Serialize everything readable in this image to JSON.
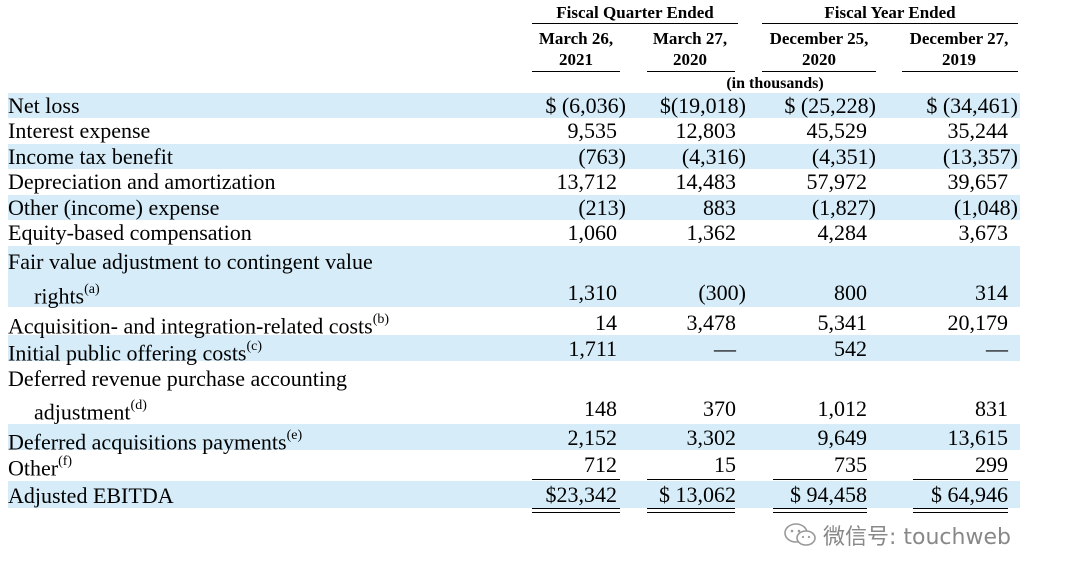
{
  "header": {
    "group_quarter": "Fiscal Quarter Ended",
    "group_year": "Fiscal Year Ended",
    "cols": [
      {
        "l1": "March 26,",
        "l2": "2021"
      },
      {
        "l1": "March 27,",
        "l2": "2020"
      },
      {
        "l1": "December 25,",
        "l2": "2020"
      },
      {
        "l1": "December 27,",
        "l2": "2019"
      }
    ],
    "unit": "(in thousands)"
  },
  "rows": [
    {
      "label": "Net loss",
      "sup": "",
      "v": [
        "$ (6,036)",
        "$(19,018)",
        "$ (25,228)",
        "$ (34,461)"
      ]
    },
    {
      "label": "Interest expense",
      "sup": "",
      "v": [
        "9,535",
        "12,803",
        "45,529",
        "35,244"
      ]
    },
    {
      "label": "Income tax benefit",
      "sup": "",
      "v": [
        "(763)",
        "(4,316)",
        "(4,351)",
        "(13,357)"
      ]
    },
    {
      "label": "Depreciation and amortization",
      "sup": "",
      "v": [
        "13,712",
        "14,483",
        "57,972",
        "39,657"
      ]
    },
    {
      "label": "Other (income) expense",
      "sup": "",
      "v": [
        "(213)",
        "883",
        "(1,827)",
        "(1,048)"
      ]
    },
    {
      "label": "Equity-based compensation",
      "sup": "",
      "v": [
        "1,060",
        "1,362",
        "4,284",
        "3,673"
      ]
    },
    {
      "label": "Fair value adjustment to contingent value",
      "label2": "rights",
      "sup": "(a)",
      "v": [
        "1,310",
        "(300)",
        "800",
        "314"
      ]
    },
    {
      "label": "Acquisition- and integration-related costs",
      "sup": "(b)",
      "v": [
        "14",
        "3,478",
        "5,341",
        "20,179"
      ]
    },
    {
      "label": "Initial public offering costs",
      "sup": "(c)",
      "v": [
        "1,711",
        "—",
        "542",
        "—"
      ]
    },
    {
      "label": "Deferred revenue purchase accounting",
      "label2": "adjustment",
      "sup": "(d)",
      "v": [
        "148",
        "370",
        "1,012",
        "831"
      ]
    },
    {
      "label": "Deferred acquisitions payments",
      "sup": "(e)",
      "v": [
        "2,152",
        "3,302",
        "9,649",
        "13,615"
      ]
    },
    {
      "label": "Other",
      "sup": "(f)",
      "v": [
        "712",
        "15",
        "735",
        "299"
      ]
    },
    {
      "label": "Adjusted EBITDA",
      "sup": "",
      "v": [
        "$23,342",
        "$ 13,062",
        "$ 94,458",
        "$ 64,946"
      ]
    }
  ],
  "watermark": {
    "text": "微信号: touchweb",
    "icon": "wechat-icon"
  }
}
